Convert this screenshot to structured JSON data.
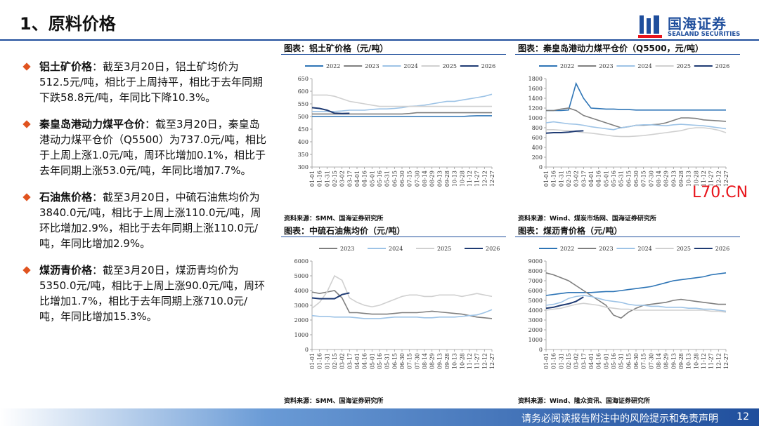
{
  "header": {
    "title": "1、原料价格",
    "logo_cn": "国海证券",
    "logo_en": "SEALAND SECURITIES"
  },
  "bullets": [
    {
      "label": "铝土矿价格",
      "text": "：截至3月20日，铝土矿均价为512.5元/吨，相比于上周持平，相比于去年同期下跌58.8元/吨，年同比下降10.3%。"
    },
    {
      "label": "秦皇岛港动力煤平仓价",
      "text": "：截至3月20日，秦皇岛港动力煤平仓价（Q5500）为737.0元/吨，相比于上周上涨1.0元/吨，周环比增加0.1%，相比于去年同期上涨53.0元/吨，年同比增加7.7%。"
    },
    {
      "label": "石油焦价格",
      "text": "：截至3月20日，中硫石油焦均价为3840.0元/吨，相比于上周上涨110.0元/吨，周环比增加2.9%，相比于去年同期上涨110.0元/吨，年同比增加2.9%。"
    },
    {
      "label": "煤沥青价格",
      "text": "：截至3月20日，煤沥青均价为5350.0元/吨，相比于上周上涨90.0元/吨，周环比增加1.7%，相比于去年同期上涨710.0元/吨，年同比增加15.3%。"
    }
  ],
  "chart_data": [
    {
      "type": "line",
      "title": "图表：铝土矿价格（元/吨）",
      "source": "资料来源：SMM、国海证券研究所",
      "categories": [
        "01-01",
        "01-16",
        "01-31",
        "02-15",
        "03-02",
        "03-17",
        "04-01",
        "04-16",
        "05-01",
        "05-16",
        "05-31",
        "06-15",
        "06-30",
        "07-15",
        "07-30",
        "08-14",
        "08-29",
        "09-13",
        "09-28",
        "10-13",
        "10-28",
        "11-12",
        "11-27",
        "12-12",
        "12-27"
      ],
      "ylim": [
        300,
        650
      ],
      "yticks": [
        300,
        350,
        400,
        450,
        500,
        550,
        600,
        650
      ],
      "series": [
        {
          "name": "2022",
          "color": "#2e75b6",
          "values": [
            500,
            500,
            500,
            500,
            500,
            500,
            500,
            500,
            500,
            500,
            500,
            500,
            500,
            500,
            500,
            500,
            500,
            500,
            500,
            500,
            500,
            502,
            503,
            503,
            503
          ]
        },
        {
          "name": "2023",
          "color": "#7f7f7f",
          "values": [
            510,
            510,
            510,
            510,
            510,
            510,
            510,
            510,
            510,
            510,
            510,
            510,
            510,
            512,
            515,
            515,
            515,
            515,
            515,
            515,
            515,
            515,
            515,
            515,
            515
          ]
        },
        {
          "name": "2024",
          "color": "#9dc3e6",
          "values": [
            520,
            520,
            520,
            520,
            522,
            525,
            525,
            525,
            528,
            530,
            530,
            532,
            535,
            540,
            542,
            545,
            550,
            555,
            560,
            560,
            565,
            570,
            575,
            580,
            588
          ]
        },
        {
          "name": "2025",
          "color": "#d0d0d0",
          "values": [
            585,
            585,
            585,
            580,
            570,
            560,
            555,
            550,
            545,
            540,
            540,
            540,
            540,
            540,
            540,
            540,
            540,
            540,
            540,
            540,
            540,
            540,
            540,
            540,
            540
          ]
        },
        {
          "name": "2026",
          "color": "#1f3b73",
          "values": [
            535,
            532,
            525,
            513,
            512,
            512.5,
            null,
            null,
            null,
            null,
            null,
            null,
            null,
            null,
            null,
            null,
            null,
            null,
            null,
            null,
            null,
            null,
            null,
            null,
            null
          ]
        }
      ]
    },
    {
      "type": "line",
      "title": "图表：秦皇岛港动力煤平仓价（Q5500，元/吨）",
      "source": "资料来源：Wind、煤炭市场网、国海证券研究所",
      "categories": [
        "01-01",
        "01-16",
        "01-31",
        "02-15",
        "03-02",
        "03-17",
        "04-01",
        "04-16",
        "05-01",
        "05-16",
        "05-31",
        "06-15",
        "06-30",
        "07-15",
        "07-30",
        "08-14",
        "08-29",
        "09-13",
        "09-28",
        "10-13",
        "10-28",
        "11-12",
        "11-27",
        "12-12",
        "12-27"
      ],
      "ylim": [
        0,
        1800
      ],
      "yticks": [
        0,
        200,
        400,
        600,
        800,
        1000,
        1200,
        1400,
        1600,
        1800
      ],
      "series": [
        {
          "name": "2022",
          "color": "#2e75b6",
          "values": [
            1150,
            1150,
            1150,
            1160,
            1700,
            1400,
            1200,
            1190,
            1180,
            1180,
            1170,
            1170,
            1160,
            1160,
            1160,
            1160,
            1160,
            1160,
            1160,
            1160,
            1160,
            1160,
            1160,
            1160,
            1160
          ]
        },
        {
          "name": "2023",
          "color": "#7f7f7f",
          "values": [
            1150,
            1150,
            1180,
            1200,
            1150,
            1050,
            1000,
            950,
            900,
            850,
            800,
            820,
            850,
            850,
            860,
            870,
            900,
            950,
            1000,
            1000,
            990,
            960,
            950,
            940,
            930
          ]
        },
        {
          "name": "2024",
          "color": "#9dc3e6",
          "values": [
            900,
            920,
            900,
            880,
            870,
            850,
            820,
            800,
            780,
            760,
            800,
            820,
            850,
            860,
            860,
            850,
            840,
            860,
            870,
            860,
            850,
            840,
            820,
            800,
            780
          ]
        },
        {
          "name": "2025",
          "color": "#d0d0d0",
          "values": [
            760,
            760,
            750,
            740,
            720,
            700,
            690,
            670,
            650,
            630,
            620,
            620,
            630,
            640,
            660,
            680,
            700,
            720,
            740,
            780,
            800,
            800,
            780,
            750,
            700
          ]
        },
        {
          "name": "2026",
          "color": "#1f3b73",
          "values": [
            690,
            700,
            700,
            710,
            730,
            737,
            null,
            null,
            null,
            null,
            null,
            null,
            null,
            null,
            null,
            null,
            null,
            null,
            null,
            null,
            null,
            null,
            null,
            null,
            null
          ]
        }
      ]
    },
    {
      "type": "line",
      "title": "图表：中硫石油焦均价（元/吨）",
      "source": "资料来源：SMM、国海证券研究所",
      "categories": [
        "01-01",
        "01-16",
        "01-31",
        "02-15",
        "03-02",
        "03-17",
        "04-01",
        "04-16",
        "05-01",
        "05-16",
        "05-31",
        "06-15",
        "06-30",
        "07-15",
        "07-30",
        "08-14",
        "08-29",
        "09-13",
        "09-28",
        "10-13",
        "10-28",
        "11-12",
        "11-27",
        "12-12",
        "12-27"
      ],
      "ylim": [
        0,
        6000
      ],
      "yticks": [
        0,
        1000,
        2000,
        3000,
        4000,
        5000,
        6000
      ],
      "series": [
        {
          "name": "2023",
          "color": "#7f7f7f",
          "values": [
            3900,
            3800,
            3900,
            4000,
            3500,
            2500,
            2500,
            2450,
            2400,
            2400,
            2400,
            2450,
            2500,
            2500,
            2500,
            2550,
            2600,
            2550,
            2500,
            2450,
            2400,
            2300,
            2200,
            2150,
            2100
          ]
        },
        {
          "name": "2024",
          "color": "#9dc3e6",
          "values": [
            2300,
            2250,
            2250,
            2200,
            2200,
            2200,
            2150,
            2100,
            2100,
            2100,
            2150,
            2200,
            2200,
            2200,
            2200,
            2150,
            2150,
            2200,
            2200,
            2200,
            2250,
            2300,
            2350,
            2500,
            2700
          ]
        },
        {
          "name": "2025",
          "color": "#d0d0d0",
          "values": [
            2800,
            3200,
            3900,
            5000,
            4700,
            3500,
            3200,
            3000,
            2900,
            3000,
            3200,
            3400,
            3600,
            3700,
            3700,
            3600,
            3600,
            3700,
            3700,
            3700,
            3600,
            3700,
            3800,
            3700,
            3600
          ]
        },
        {
          "name": "2026",
          "color": "#1f3b73",
          "values": [
            3500,
            3450,
            3450,
            3450,
            3730,
            3840,
            null,
            null,
            null,
            null,
            null,
            null,
            null,
            null,
            null,
            null,
            null,
            null,
            null,
            null,
            null,
            null,
            null,
            null,
            null
          ]
        }
      ]
    },
    {
      "type": "line",
      "title": "图表：煤沥青价格（元/吨）",
      "source": "资料来源：Wind、隆众资讯、国海证券研究所",
      "categories": [
        "01-01",
        "01-16",
        "01-31",
        "02-15",
        "03-02",
        "03-17",
        "04-01",
        "04-16",
        "05-01",
        "05-16",
        "05-31",
        "06-15",
        "06-30",
        "07-15",
        "07-30",
        "08-14",
        "08-29",
        "09-13",
        "09-28",
        "10-13",
        "10-28",
        "11-12",
        "11-27",
        "12-12",
        "12-27"
      ],
      "ylim": [
        0,
        9000
      ],
      "yticks": [
        0,
        1000,
        2000,
        3000,
        4000,
        5000,
        6000,
        7000,
        8000,
        9000
      ],
      "series": [
        {
          "name": "2022",
          "color": "#2e75b6",
          "values": [
            5500,
            5600,
            5700,
            5800,
            5800,
            5800,
            5800,
            5850,
            5900,
            5900,
            6000,
            6100,
            6200,
            6300,
            6400,
            6600,
            6800,
            7000,
            7100,
            7200,
            7300,
            7400,
            7600,
            7700,
            7800
          ]
        },
        {
          "name": "2023",
          "color": "#7f7f7f",
          "values": [
            7800,
            7600,
            7300,
            7000,
            6500,
            6000,
            5500,
            5000,
            4500,
            3500,
            3200,
            3800,
            4200,
            4500,
            4600,
            4700,
            4800,
            5000,
            5100,
            5000,
            4900,
            4800,
            4700,
            4600,
            4600
          ]
        },
        {
          "name": "2024",
          "color": "#9dc3e6",
          "values": [
            4500,
            4600,
            4800,
            5200,
            5400,
            5500,
            5400,
            5200,
            5000,
            4900,
            4800,
            4600,
            4500,
            4500,
            4400,
            4400,
            4300,
            4300,
            4300,
            4200,
            4200,
            4100,
            4100,
            4000,
            3900
          ]
        },
        {
          "name": "2025",
          "color": "#d0d0d0",
          "values": [
            4000,
            4100,
            4200,
            4400,
            4600,
            4700,
            4600,
            4500,
            4300,
            4200,
            4100,
            4100,
            4000,
            4000,
            4000,
            4000,
            4000,
            4000,
            4000,
            4000,
            4000,
            4000,
            3900,
            3900,
            3800
          ]
        },
        {
          "name": "2026",
          "color": "#1f3b73",
          "values": [
            4200,
            4300,
            4500,
            4650,
            4900,
            5350,
            null,
            null,
            null,
            null,
            null,
            null,
            null,
            null,
            null,
            null,
            null,
            null,
            null,
            null,
            null,
            null,
            null,
            null,
            null
          ]
        }
      ]
    }
  ],
  "watermark": "L70.CN",
  "footer": {
    "disclaimer": "请务必阅读报告附注中的风险提示和免责声明",
    "page": "12"
  }
}
